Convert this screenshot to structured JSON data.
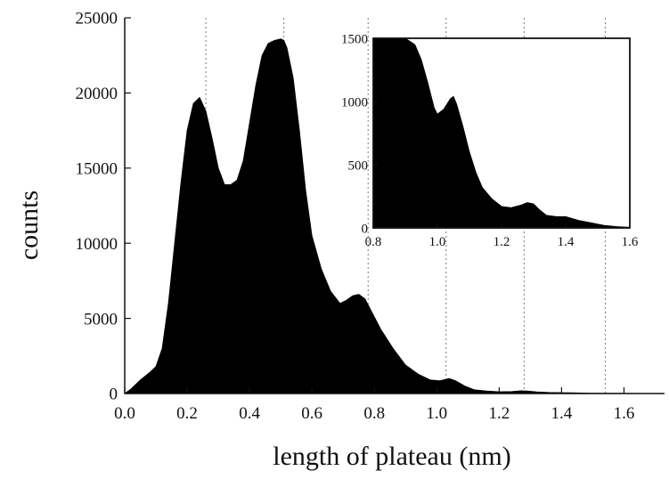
{
  "colors": {
    "fill": "#000000",
    "axis": "#111111",
    "gridline": "#7a7a7a",
    "background": "#ffffff"
  },
  "chart_data": [
    {
      "type": "area",
      "xlabel": "length of plateau (nm)",
      "ylabel": "counts",
      "xlim": [
        0.0,
        1.73
      ],
      "ylim": [
        0,
        25000
      ],
      "xticks": [
        0.0,
        0.2,
        0.4,
        0.6,
        0.8,
        1.0,
        1.2,
        1.4,
        1.6
      ],
      "xtick_labels": [
        "0.0",
        "0.2",
        "0.4",
        "0.6",
        "0.8",
        "1.0",
        "1.2",
        "1.4",
        "1.6"
      ],
      "yticks": [
        0,
        5000,
        10000,
        15000,
        20000,
        25000
      ],
      "ytick_labels": [
        "0",
        "5000",
        "10000",
        "15000",
        "20000",
        "25000"
      ],
      "reference_lines_x": [
        0.26,
        0.51,
        0.78,
        1.03,
        1.28,
        1.54
      ],
      "grid": false,
      "legend": "none",
      "x": [
        0.0,
        0.02,
        0.05,
        0.08,
        0.1,
        0.12,
        0.14,
        0.16,
        0.18,
        0.2,
        0.22,
        0.24,
        0.26,
        0.28,
        0.3,
        0.32,
        0.34,
        0.36,
        0.38,
        0.4,
        0.42,
        0.44,
        0.46,
        0.48,
        0.5,
        0.51,
        0.52,
        0.54,
        0.56,
        0.58,
        0.6,
        0.63,
        0.66,
        0.69,
        0.71,
        0.73,
        0.75,
        0.77,
        0.79,
        0.82,
        0.86,
        0.9,
        0.94,
        0.98,
        1.01,
        1.04,
        1.06,
        1.09,
        1.12,
        1.16,
        1.2,
        1.24,
        1.27,
        1.29,
        1.32,
        1.36,
        1.4,
        1.45,
        1.5,
        1.6,
        1.7,
        1.73
      ],
      "y": [
        0,
        300,
        900,
        1400,
        1800,
        3000,
        6000,
        10000,
        14000,
        17500,
        19300,
        19700,
        18800,
        17000,
        15000,
        13900,
        13900,
        14200,
        15500,
        18000,
        20500,
        22500,
        23300,
        23500,
        23600,
        23500,
        23000,
        21000,
        17500,
        13500,
        10500,
        8300,
        6800,
        6000,
        6200,
        6500,
        6600,
        6300,
        5500,
        4300,
        3000,
        1900,
        1300,
        900,
        850,
        1000,
        850,
        500,
        250,
        170,
        120,
        130,
        180,
        170,
        110,
        70,
        60,
        40,
        20,
        10,
        0,
        0
      ]
    },
    {
      "type": "area",
      "xlabel": "",
      "ylabel": "",
      "xlim": [
        0.8,
        1.6
      ],
      "ylim": [
        0,
        1500
      ],
      "xticks": [
        0.8,
        1.0,
        1.2,
        1.4,
        1.6
      ],
      "xtick_labels": [
        "0.8",
        "1.0",
        "1.2",
        "1.4",
        "1.6"
      ],
      "yticks": [
        0,
        500,
        1000,
        1500
      ],
      "ytick_labels": [
        "0",
        "500",
        "1000",
        "1500"
      ],
      "grid": false,
      "legend": "none",
      "x": [
        0.8,
        0.85,
        0.9,
        0.93,
        0.95,
        0.97,
        0.99,
        1.0,
        1.02,
        1.04,
        1.05,
        1.06,
        1.08,
        1.1,
        1.12,
        1.14,
        1.17,
        1.2,
        1.23,
        1.26,
        1.28,
        1.3,
        1.32,
        1.34,
        1.37,
        1.4,
        1.44,
        1.48,
        1.52,
        1.56,
        1.6
      ],
      "y": [
        1500,
        1500,
        1500,
        1450,
        1330,
        1150,
        950,
        900,
        940,
        1020,
        1040,
        980,
        800,
        600,
        440,
        320,
        230,
        170,
        160,
        180,
        200,
        190,
        140,
        100,
        90,
        90,
        60,
        40,
        20,
        10,
        5
      ]
    }
  ]
}
